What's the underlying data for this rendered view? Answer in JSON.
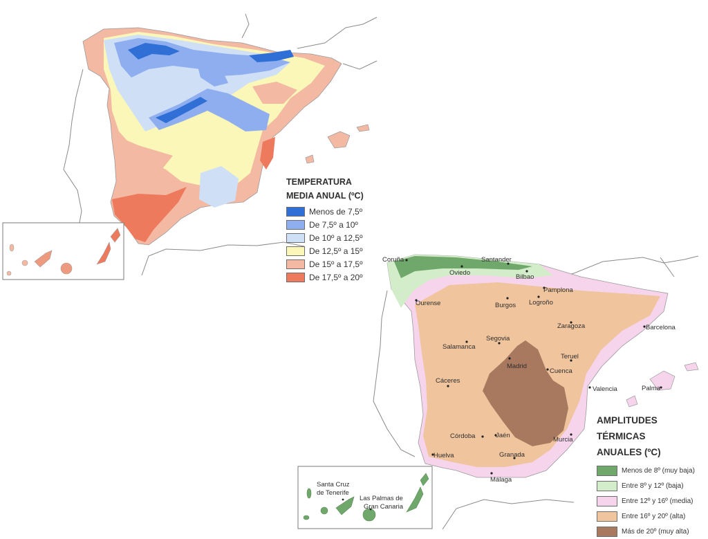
{
  "map1": {
    "title_line1": "TEMPERATURA",
    "title_line2": "MEDIA ANUAL (ºC)",
    "legend": [
      {
        "label": "Menos de 7,5º",
        "color": "#2f6fd6"
      },
      {
        "label": "De 7,5º a 10º",
        "color": "#8eaef0"
      },
      {
        "label": "De 10º a 12,5º",
        "color": "#cfe0f6"
      },
      {
        "label": "De 12,5º a 15º",
        "color": "#fbf7b8"
      },
      {
        "label": "De 15º a 17,5º",
        "color": "#f3b9a3"
      },
      {
        "label": "De 17,5º a 20º",
        "color": "#ee7a5e"
      }
    ]
  },
  "map2": {
    "title_line1": "AMPLITUDES",
    "title_line2": "TÉRMICAS",
    "title_line3": "ANUALES (ºC)",
    "legend": [
      {
        "label": "Menos de 8º (muy baja)",
        "color": "#6fa86a"
      },
      {
        "label": "Entre 8º y 12º (baja)",
        "color": "#d3ecc9"
      },
      {
        "label": "Entre 12º y 16º (media)",
        "color": "#f6d4ec"
      },
      {
        "label": "Entre 16º y 20º (alta)",
        "color": "#f0c49d"
      },
      {
        "label": "Más de 20º (muy alta)",
        "color": "#a9795f"
      }
    ],
    "cities": {
      "coruna": "Coruña",
      "santander": "Santander",
      "oviedo": "Oviedo",
      "bilbao": "Bilbao",
      "pamplona": "Pamplona",
      "ourense": "Ourense",
      "burgos": "Burgos",
      "logrono": "Logroño",
      "zaragoza": "Zaragoza",
      "barcelona": "Barcelona",
      "segovia": "Segovia",
      "salamanca": "Salamanca",
      "teruel": "Teruel",
      "madrid": "Madrid",
      "cuenca": "Cuenca",
      "caceres": "Cáceres",
      "valencia": "Valencia",
      "palma": "Palma",
      "cordoba": "Córdoba",
      "jaen": "Jaén",
      "murcia": "Murcia",
      "huelva": "Huelva",
      "granada": "Granada",
      "malaga": "Málaga",
      "santa_cruz_1": "Santa Cruz",
      "santa_cruz_2": "de Tenerife",
      "las_palmas_1": "Las Palmas de",
      "las_palmas_2": "Gran Canaria"
    }
  }
}
